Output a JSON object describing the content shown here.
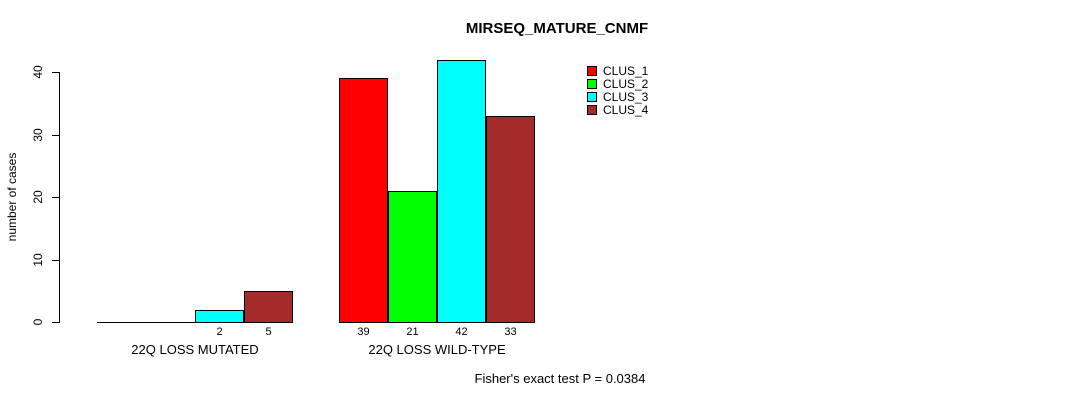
{
  "chart_data": {
    "type": "bar",
    "title": "MIRSEQ_MATURE_CNMF",
    "ylabel": "number of cases",
    "xlabel": "",
    "ylim": [
      0,
      40
    ],
    "yticks": [
      0,
      10,
      20,
      30,
      40
    ],
    "grid": false,
    "legend_position": "top-right",
    "categories": [
      "22Q LOSS MUTATED",
      "22Q LOSS WILD-TYPE"
    ],
    "series": [
      {
        "name": "CLUS_1",
        "color": "#FF0000",
        "values": [
          0,
          39
        ]
      },
      {
        "name": "CLUS_2",
        "color": "#00FF00",
        "values": [
          0,
          21
        ]
      },
      {
        "name": "CLUS_3",
        "color": "#00FFFF",
        "values": [
          2,
          42
        ]
      },
      {
        "name": "CLUS_4",
        "color": "#A52A2A",
        "values": [
          5,
          33
        ]
      }
    ],
    "bar_labels": [
      [
        null,
        null,
        "2",
        "5"
      ],
      [
        "39",
        "21",
        "42",
        "33"
      ]
    ],
    "footnote": "Fisher's exact test P = 0.0384"
  }
}
